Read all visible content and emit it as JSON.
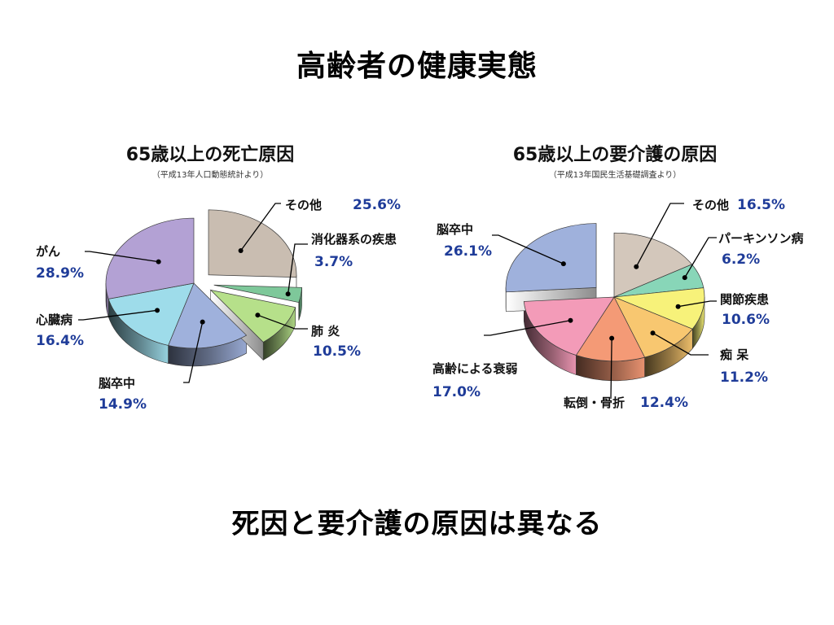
{
  "slide": {
    "title": "高齢者の健康実態",
    "caption": "死因と要介護の原因は異なる"
  },
  "chart_data": [
    {
      "type": "pie",
      "title": "65歳以上の死亡原因",
      "subtitle": "（平成13年人口動態統計より）",
      "slices": [
        {
          "label": "その他",
          "value": 25.6,
          "display": "25.6%",
          "color": "#c9bdb1",
          "exploded": true
        },
        {
          "label": "消化器系の疾患",
          "value": 3.7,
          "display": "3.7%",
          "color": "#7ec89a",
          "exploded": true
        },
        {
          "label": "肺 炎",
          "value": 10.5,
          "display": "10.5%",
          "color": "#b6e08a",
          "exploded": true
        },
        {
          "label": "脳卒中",
          "value": 14.9,
          "display": "14.9%",
          "color": "#9fb1dc",
          "exploded": false
        },
        {
          "label": "心臓病",
          "value": 16.4,
          "display": "16.4%",
          "color": "#9edcea",
          "exploded": false
        },
        {
          "label": "がん",
          "value": 28.9,
          "display": "28.9%",
          "color": "#b3a1d4",
          "exploded": false
        }
      ]
    },
    {
      "type": "pie",
      "title": "65歳以上の要介護の原因",
      "subtitle": "（平成13年国民生活基礎調査より）",
      "slices": [
        {
          "label": "その他",
          "value": 16.5,
          "display": "16.5%",
          "color": "#d3c7bb",
          "exploded": false
        },
        {
          "label": "パーキンソン病",
          "value": 6.2,
          "display": "6.2%",
          "color": "#88d6b8",
          "exploded": false
        },
        {
          "label": "関節疾患",
          "value": 10.6,
          "display": "10.6%",
          "color": "#f7f27a",
          "exploded": false
        },
        {
          "label": "痴 呆",
          "value": 11.2,
          "display": "11.2%",
          "color": "#f8c770",
          "exploded": false
        },
        {
          "label": "転倒・骨折",
          "value": 12.4,
          "display": "12.4%",
          "color": "#f49a76",
          "exploded": false
        },
        {
          "label": "高齢による衰弱",
          "value": 17.0,
          "display": "17.0%",
          "color": "#f39bb8",
          "exploded": false
        },
        {
          "label": "脳卒中",
          "value": 26.1,
          "display": "26.1%",
          "color": "#9fb1dc",
          "exploded": true
        }
      ]
    }
  ]
}
